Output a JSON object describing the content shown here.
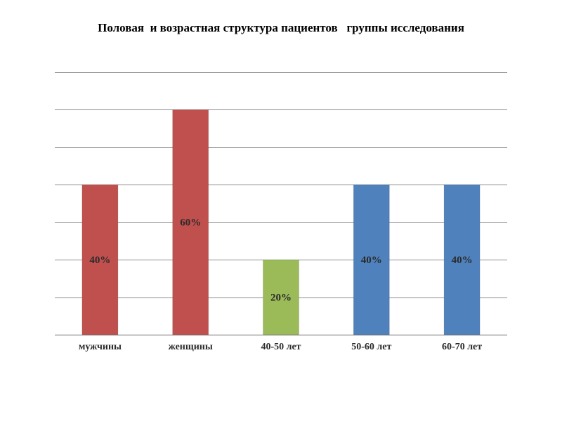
{
  "title": "Половая  и возрастная структура пациентов   группы исследования",
  "chart_data": {
    "type": "bar",
    "categories": [
      "мужчины",
      "женщины",
      "40-50 лет",
      "50-60 лет",
      "60-70 лет"
    ],
    "values": [
      40,
      60,
      20,
      40,
      40
    ],
    "value_labels": [
      "40%",
      "60%",
      "20%",
      "40%",
      "40%"
    ],
    "colors": [
      "#C0504D",
      "#C0504D",
      "#9BBB59",
      "#4F81BD",
      "#4F81BD"
    ],
    "ylim": [
      0,
      70
    ],
    "ytick_step": 10,
    "grid": true,
    "legend": "none",
    "ytick_labels_shown": false,
    "gridline_color": "#8c8c8c"
  }
}
